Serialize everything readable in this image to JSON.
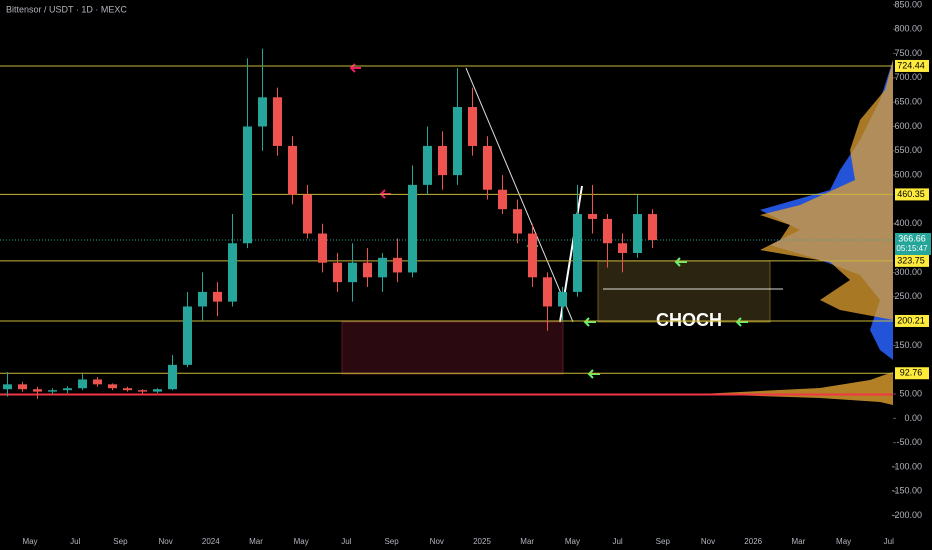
{
  "chart_data": {
    "type": "candlestick",
    "title": "Bittensor / USDT · 1D · MEXC",
    "open": [
      60,
      70,
      60,
      55,
      58,
      62,
      80,
      70,
      62,
      58,
      55,
      60,
      110,
      230,
      260,
      240,
      360,
      600,
      660,
      560,
      460,
      380,
      320,
      280,
      320,
      290,
      330,
      300,
      480,
      560,
      500,
      640,
      560,
      470,
      430,
      380,
      290,
      230,
      260,
      420,
      410,
      360,
      340,
      420
    ],
    "high": [
      95,
      75,
      65,
      62,
      66,
      92,
      85,
      72,
      65,
      60,
      62,
      130,
      260,
      300,
      280,
      420,
      740,
      760,
      680,
      580,
      480,
      400,
      340,
      360,
      350,
      340,
      370,
      520,
      600,
      590,
      720,
      680,
      580,
      500,
      450,
      400,
      300,
      270,
      480,
      480,
      420,
      380,
      460,
      430
    ],
    "low": [
      45,
      55,
      40,
      50,
      52,
      58,
      65,
      58,
      55,
      50,
      52,
      58,
      105,
      200,
      210,
      230,
      350,
      550,
      540,
      440,
      370,
      300,
      260,
      240,
      270,
      260,
      280,
      290,
      460,
      470,
      480,
      540,
      450,
      420,
      360,
      270,
      180,
      200,
      250,
      380,
      310,
      300,
      330,
      350
    ],
    "close": [
      70,
      60,
      55,
      58,
      62,
      80,
      70,
      62,
      58,
      55,
      60,
      110,
      230,
      260,
      240,
      360,
      600,
      660,
      560,
      460,
      380,
      320,
      280,
      320,
      290,
      330,
      300,
      480,
      560,
      500,
      640,
      560,
      470,
      430,
      380,
      290,
      230,
      260,
      420,
      410,
      360,
      340,
      420,
      366.66
    ],
    "colors": {
      "up": "#26a69a",
      "down": "#ef5350",
      "level": "#c9b83a",
      "tag": "#ffeb3b",
      "support": "#f23645"
    },
    "ylim": [
      -250,
      860
    ],
    "yticks": [
      {
        "value": 850,
        "label": "850.00"
      },
      {
        "value": 800,
        "label": "800.00"
      },
      {
        "value": 750,
        "label": "750.00"
      },
      {
        "value": 700,
        "label": "700.00"
      },
      {
        "value": 650,
        "label": "650.00"
      },
      {
        "value": 600,
        "label": "600.00"
      },
      {
        "value": 550,
        "label": "550.00"
      },
      {
        "value": 500,
        "label": "500.00"
      },
      {
        "value": 400,
        "label": "400.00"
      },
      {
        "value": 300,
        "label": "300.00"
      },
      {
        "value": 250,
        "label": "250.00"
      },
      {
        "value": 150,
        "label": "150.00"
      },
      {
        "value": 50,
        "label": "50.00"
      },
      {
        "value": 0,
        "label": "0.00"
      },
      {
        "value": -50,
        "label": "-50.00"
      },
      {
        "value": -100,
        "label": "-100.00"
      },
      {
        "value": -150,
        "label": "-150.00"
      },
      {
        "value": -200,
        "label": "-200.00"
      }
    ],
    "levels": [
      724.44,
      460.35,
      323.75,
      200.21,
      92.76
    ],
    "support_line": 49,
    "current_price": 366.66,
    "countdown": "05:15:47",
    "annotation": "CHOCH",
    "time_labels": [
      "May",
      "Jul",
      "Sep",
      "Nov",
      "2024",
      "Mar",
      "May",
      "Jul",
      "Sep",
      "Nov",
      "2025",
      "Mar",
      "May",
      "Jul",
      "Sep",
      "Nov",
      "2026",
      "Mar",
      "May",
      "Jul"
    ]
  }
}
